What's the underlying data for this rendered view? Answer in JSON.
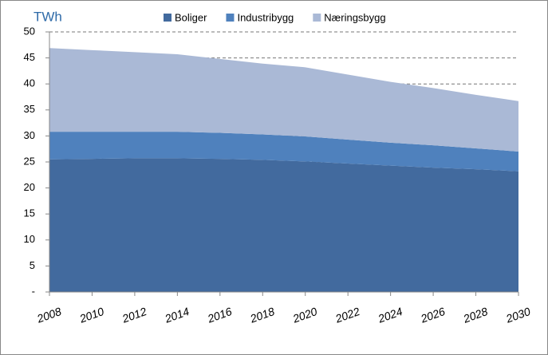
{
  "chart_data": {
    "type": "area",
    "stacked": true,
    "y_label": "TWh",
    "x": [
      2008,
      2010,
      2012,
      2014,
      2016,
      2018,
      2020,
      2022,
      2024,
      2026,
      2028,
      2030
    ],
    "series": [
      {
        "name": "Boliger",
        "color": "#426a9e",
        "values": [
          25.5,
          25.6,
          25.7,
          25.7,
          25.6,
          25.4,
          25.1,
          24.7,
          24.3,
          23.9,
          23.6,
          23.2
        ]
      },
      {
        "name": "Industribygg",
        "color": "#4f81bd",
        "values": [
          5.3,
          5.2,
          5.1,
          5.1,
          5.0,
          4.9,
          4.8,
          4.6,
          4.4,
          4.3,
          4.0,
          3.8
        ]
      },
      {
        "name": "Næringsbygg",
        "color": "#aab9d6",
        "values": [
          16.1,
          15.7,
          15.3,
          14.9,
          14.2,
          13.6,
          13.3,
          12.5,
          11.7,
          11.0,
          10.3,
          9.7
        ]
      }
    ],
    "xlim": [
      2008,
      2030
    ],
    "xticks": [
      2008,
      2010,
      2012,
      2014,
      2016,
      2018,
      2020,
      2022,
      2024,
      2026,
      2028,
      2030
    ],
    "ylim": [
      0,
      50
    ],
    "yticks": [
      {
        "value": 0,
        "label": "-"
      },
      5,
      10,
      15,
      20,
      25,
      30,
      35,
      40,
      45,
      50
    ],
    "grid": true,
    "legend": "top"
  }
}
